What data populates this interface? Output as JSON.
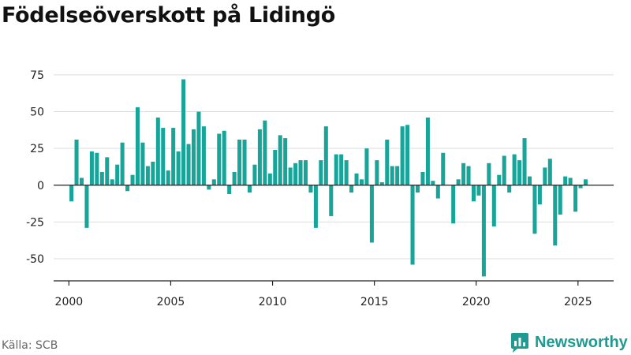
{
  "title": "Födelseöverskott på Lidingö",
  "source": "Källa: SCB",
  "brand": "Newsworthy",
  "colors": {
    "bar": "#17a59a",
    "brand": "#1d9b92",
    "grid": "#dddddd",
    "axis": "#222222"
  },
  "chart_data": {
    "type": "bar",
    "title": "Födelseöverskott på Lidingö",
    "xlabel": "",
    "ylabel": "",
    "ylim": [
      -65,
      83
    ],
    "xlim": [
      1999.25,
      2026.75
    ],
    "grid": true,
    "y_ticks": [
      -50,
      -25,
      0,
      25,
      50,
      75
    ],
    "x_ticks": [
      2000,
      2005,
      2010,
      2015,
      2020,
      2025
    ],
    "series": [
      {
        "x": [
          2000.125,
          2000.375,
          2000.625,
          2000.875,
          2001.125,
          2001.375,
          2001.625,
          2001.875,
          2002.125,
          2002.375,
          2002.625,
          2002.875,
          2003.125,
          2003.375,
          2003.625,
          2003.875,
          2004.125,
          2004.375,
          2004.625,
          2004.875,
          2005.125,
          2005.375,
          2005.625,
          2005.875,
          2006.125,
          2006.375,
          2006.625,
          2006.875,
          2007.125,
          2007.375,
          2007.625,
          2007.875,
          2008.125,
          2008.375,
          2008.625,
          2008.875,
          2009.125,
          2009.375,
          2009.625,
          2009.875,
          2010.125,
          2010.375,
          2010.625,
          2010.875,
          2011.125,
          2011.375,
          2011.625,
          2011.875,
          2012.125,
          2012.375,
          2012.625,
          2012.875,
          2013.125,
          2013.375,
          2013.625,
          2013.875,
          2014.125,
          2014.375,
          2014.625,
          2014.875,
          2015.125,
          2015.375,
          2015.625,
          2015.875,
          2016.125,
          2016.375,
          2016.625,
          2016.875,
          2017.125,
          2017.375,
          2017.625,
          2017.875,
          2018.125,
          2018.375,
          2018.625,
          2018.875,
          2019.125,
          2019.375,
          2019.625,
          2019.875,
          2020.125,
          2020.375,
          2020.625,
          2020.875,
          2021.125,
          2021.375,
          2021.625,
          2021.875,
          2022.125,
          2022.375,
          2022.625,
          2022.875,
          2023.125,
          2023.375,
          2023.625,
          2023.875,
          2024.125,
          2024.375,
          2024.625,
          2024.875,
          2025.125,
          2025.375
        ],
        "values": [
          -11,
          31,
          5,
          -29,
          23,
          22,
          9,
          19,
          4,
          14,
          29,
          -4,
          7,
          53,
          29,
          13,
          16,
          46,
          39,
          10,
          39,
          23,
          72,
          28,
          38,
          50,
          40,
          -3,
          4,
          35,
          37,
          -6,
          9,
          31,
          31,
          -5,
          14,
          38,
          44,
          8,
          24,
          34,
          32,
          12,
          15,
          17,
          17,
          -5,
          -29,
          17,
          40,
          -21,
          21,
          21,
          17,
          -5,
          8,
          4,
          25,
          -39,
          17,
          2,
          31,
          13,
          13,
          40,
          41,
          -54,
          -5,
          9,
          46,
          3,
          -9,
          22,
          0,
          -26,
          4,
          15,
          13,
          -11,
          -7,
          -62,
          15,
          -28,
          7,
          20,
          -5,
          21,
          17,
          32,
          6,
          -33,
          -13,
          12,
          18,
          -41,
          -20,
          6,
          5,
          -18,
          -2,
          4
        ]
      }
    ]
  }
}
